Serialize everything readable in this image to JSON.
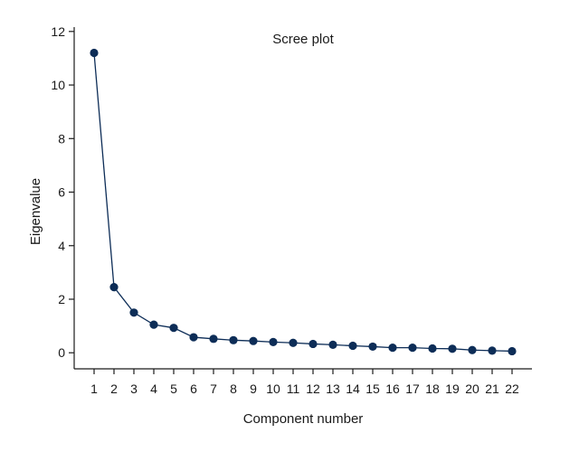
{
  "chart_data": {
    "type": "line",
    "title": "Scree plot",
    "xlabel": "Component number",
    "ylabel": "Eigenvalue",
    "x": [
      1,
      2,
      3,
      4,
      5,
      6,
      7,
      8,
      9,
      10,
      11,
      12,
      13,
      14,
      15,
      16,
      17,
      18,
      19,
      20,
      21,
      22
    ],
    "series": [
      {
        "values": [
          11.2,
          2.45,
          1.5,
          1.05,
          0.93,
          0.58,
          0.52,
          0.47,
          0.44,
          0.4,
          0.37,
          0.33,
          0.3,
          0.26,
          0.23,
          0.19,
          0.19,
          0.16,
          0.15,
          0.1,
          0.08,
          0.06
        ]
      }
    ],
    "xlim": [
      0,
      23
    ],
    "ylim": [
      -0.6,
      12.5
    ],
    "yticks": [
      0,
      2,
      4,
      6,
      8,
      10,
      12
    ],
    "grid": false,
    "legend": "none",
    "colors": {
      "series": "#0d2d57",
      "axis": "#1a1a1a"
    }
  }
}
